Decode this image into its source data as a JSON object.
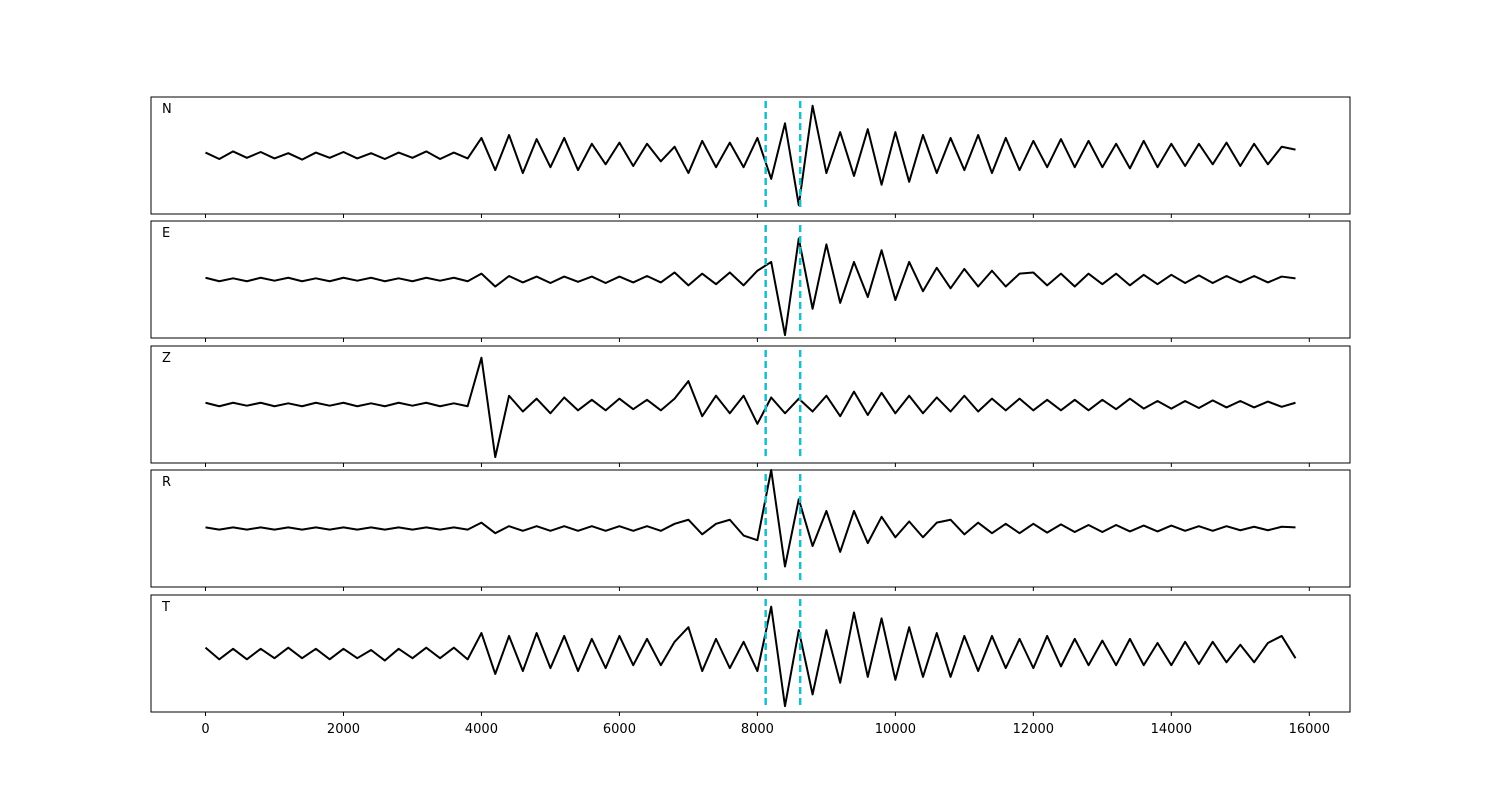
{
  "chart_data": {
    "type": "line",
    "x": [
      0,
      200,
      400,
      600,
      800,
      1000,
      1200,
      1400,
      1600,
      1800,
      2000,
      2200,
      2400,
      2600,
      2800,
      3000,
      3200,
      3400,
      3600,
      3800,
      4000,
      4200,
      4400,
      4600,
      4800,
      5000,
      5200,
      5400,
      5600,
      5800,
      6000,
      6200,
      6400,
      6600,
      6800,
      7000,
      7200,
      7400,
      7600,
      7800,
      8000,
      8200,
      8400,
      8600,
      8800,
      9000,
      9200,
      9400,
      9600,
      9800,
      10000,
      10200,
      10400,
      10600,
      10800,
      11000,
      11200,
      11400,
      11600,
      11800,
      12000,
      12200,
      12400,
      12600,
      12800,
      13000,
      13200,
      13400,
      13600,
      13800,
      14000,
      14200,
      14400,
      14600,
      14800,
      15000,
      15200,
      15400,
      15600,
      15800
    ],
    "xlim": [
      -790,
      16590
    ],
    "xticks": [
      0,
      2000,
      4000,
      6000,
      8000,
      10000,
      12000,
      14000,
      16000
    ],
    "ylim": [
      -1,
      1
    ],
    "vlines": [
      8120,
      8620
    ],
    "vline_color": "#17becf",
    "series": [
      {
        "name": "N",
        "color": "#000000",
        "values": [
          0.05,
          -0.06,
          0.07,
          -0.04,
          0.06,
          -0.05,
          0.04,
          -0.07,
          0.05,
          -0.04,
          0.06,
          -0.05,
          0.04,
          -0.06,
          0.05,
          -0.04,
          0.07,
          -0.06,
          0.05,
          -0.05,
          0.3,
          -0.25,
          0.35,
          -0.3,
          0.28,
          -0.2,
          0.3,
          -0.25,
          0.2,
          -0.15,
          0.22,
          -0.18,
          0.2,
          -0.1,
          0.15,
          -0.3,
          0.25,
          -0.2,
          0.22,
          -0.2,
          0.3,
          -0.4,
          0.55,
          -0.85,
          0.85,
          -0.3,
          0.4,
          -0.35,
          0.45,
          -0.5,
          0.4,
          -0.45,
          0.35,
          -0.3,
          0.3,
          -0.25,
          0.35,
          -0.3,
          0.3,
          -0.25,
          0.25,
          -0.2,
          0.28,
          -0.2,
          0.25,
          -0.2,
          0.2,
          -0.22,
          0.25,
          -0.2,
          0.2,
          -0.18,
          0.2,
          -0.15,
          0.22,
          -0.18,
          0.2,
          -0.15,
          0.15,
          0.1
        ]
      },
      {
        "name": "E",
        "color": "#000000",
        "values": [
          0.03,
          -0.03,
          0.02,
          -0.03,
          0.03,
          -0.02,
          0.03,
          -0.03,
          0.02,
          -0.03,
          0.03,
          -0.02,
          0.03,
          -0.03,
          0.02,
          -0.03,
          0.03,
          -0.02,
          0.03,
          -0.03,
          0.1,
          -0.12,
          0.06,
          -0.05,
          0.05,
          -0.06,
          0.05,
          -0.04,
          0.05,
          -0.06,
          0.05,
          -0.05,
          0.06,
          -0.05,
          0.12,
          -0.1,
          0.1,
          -0.08,
          0.12,
          -0.1,
          0.15,
          0.3,
          -0.95,
          0.7,
          -0.5,
          0.6,
          -0.4,
          0.3,
          -0.3,
          0.5,
          -0.35,
          0.3,
          -0.2,
          0.2,
          -0.15,
          0.18,
          -0.12,
          0.15,
          -0.12,
          0.1,
          0.12,
          -0.1,
          0.1,
          -0.12,
          0.1,
          -0.08,
          0.1,
          -0.1,
          0.08,
          -0.08,
          0.08,
          -0.06,
          0.07,
          -0.06,
          0.06,
          -0.05,
          0.06,
          -0.05,
          0.05,
          0.02
        ]
      },
      {
        "name": "Z",
        "color": "#000000",
        "values": [
          0.03,
          -0.03,
          0.03,
          -0.02,
          0.03,
          -0.03,
          0.02,
          -0.03,
          0.03,
          -0.02,
          0.03,
          -0.03,
          0.02,
          -0.03,
          0.03,
          -0.02,
          0.03,
          -0.03,
          0.02,
          -0.03,
          0.8,
          -0.9,
          0.15,
          -0.12,
          0.1,
          -0.15,
          0.12,
          -0.1,
          0.08,
          -0.1,
          0.1,
          -0.08,
          0.08,
          -0.1,
          0.1,
          0.4,
          -0.2,
          0.15,
          -0.15,
          0.15,
          -0.33,
          0.12,
          -0.15,
          0.1,
          -0.12,
          0.15,
          -0.2,
          0.22,
          -0.18,
          0.2,
          -0.15,
          0.15,
          -0.15,
          0.12,
          -0.12,
          0.15,
          -0.12,
          0.1,
          -0.1,
          0.1,
          -0.1,
          0.08,
          -0.1,
          0.08,
          -0.1,
          0.08,
          -0.08,
          0.1,
          -0.07,
          0.06,
          -0.07,
          0.06,
          -0.06,
          0.07,
          -0.05,
          0.06,
          -0.05,
          0.05,
          -0.04,
          0.03
        ]
      },
      {
        "name": "R",
        "color": "#000000",
        "values": [
          0.02,
          -0.02,
          0.02,
          -0.02,
          0.02,
          -0.02,
          0.02,
          -0.02,
          0.02,
          -0.02,
          0.02,
          -0.02,
          0.02,
          -0.02,
          0.02,
          -0.02,
          0.02,
          -0.02,
          0.02,
          -0.02,
          0.1,
          -0.08,
          0.04,
          -0.04,
          0.04,
          -0.04,
          0.04,
          -0.04,
          0.04,
          -0.04,
          0.04,
          -0.04,
          0.04,
          -0.04,
          0.08,
          0.15,
          -0.1,
          0.08,
          0.15,
          -0.12,
          -0.2,
          1.0,
          -0.65,
          0.5,
          -0.3,
          0.3,
          -0.4,
          0.3,
          -0.25,
          0.2,
          -0.15,
          0.12,
          -0.15,
          0.1,
          0.15,
          -0.1,
          0.1,
          -0.08,
          0.08,
          -0.08,
          0.08,
          -0.07,
          0.07,
          -0.06,
          0.06,
          -0.06,
          0.06,
          -0.05,
          0.05,
          -0.05,
          0.05,
          -0.04,
          0.04,
          -0.04,
          0.04,
          -0.03,
          0.03,
          -0.03,
          0.03,
          0.02
        ]
      },
      {
        "name": "T",
        "color": "#000000",
        "values": [
          0.1,
          -0.1,
          0.08,
          -0.1,
          0.08,
          -0.08,
          0.1,
          -0.08,
          0.08,
          -0.1,
          0.08,
          -0.08,
          0.06,
          -0.12,
          0.08,
          -0.08,
          0.1,
          -0.08,
          0.1,
          -0.1,
          0.35,
          -0.35,
          0.3,
          -0.3,
          0.35,
          -0.25,
          0.3,
          -0.3,
          0.25,
          -0.25,
          0.3,
          -0.2,
          0.25,
          -0.2,
          0.2,
          0.45,
          -0.3,
          0.25,
          -0.25,
          0.2,
          -0.3,
          0.8,
          -0.9,
          0.4,
          -0.7,
          0.4,
          -0.5,
          0.7,
          -0.4,
          0.6,
          -0.45,
          0.45,
          -0.4,
          0.35,
          -0.4,
          0.3,
          -0.3,
          0.3,
          -0.25,
          0.25,
          -0.25,
          0.3,
          -0.22,
          0.25,
          -0.2,
          0.22,
          -0.2,
          0.25,
          -0.2,
          0.18,
          -0.2,
          0.2,
          -0.18,
          0.2,
          -0.15,
          0.15,
          -0.15,
          0.18,
          0.3,
          -0.08
        ]
      }
    ]
  }
}
